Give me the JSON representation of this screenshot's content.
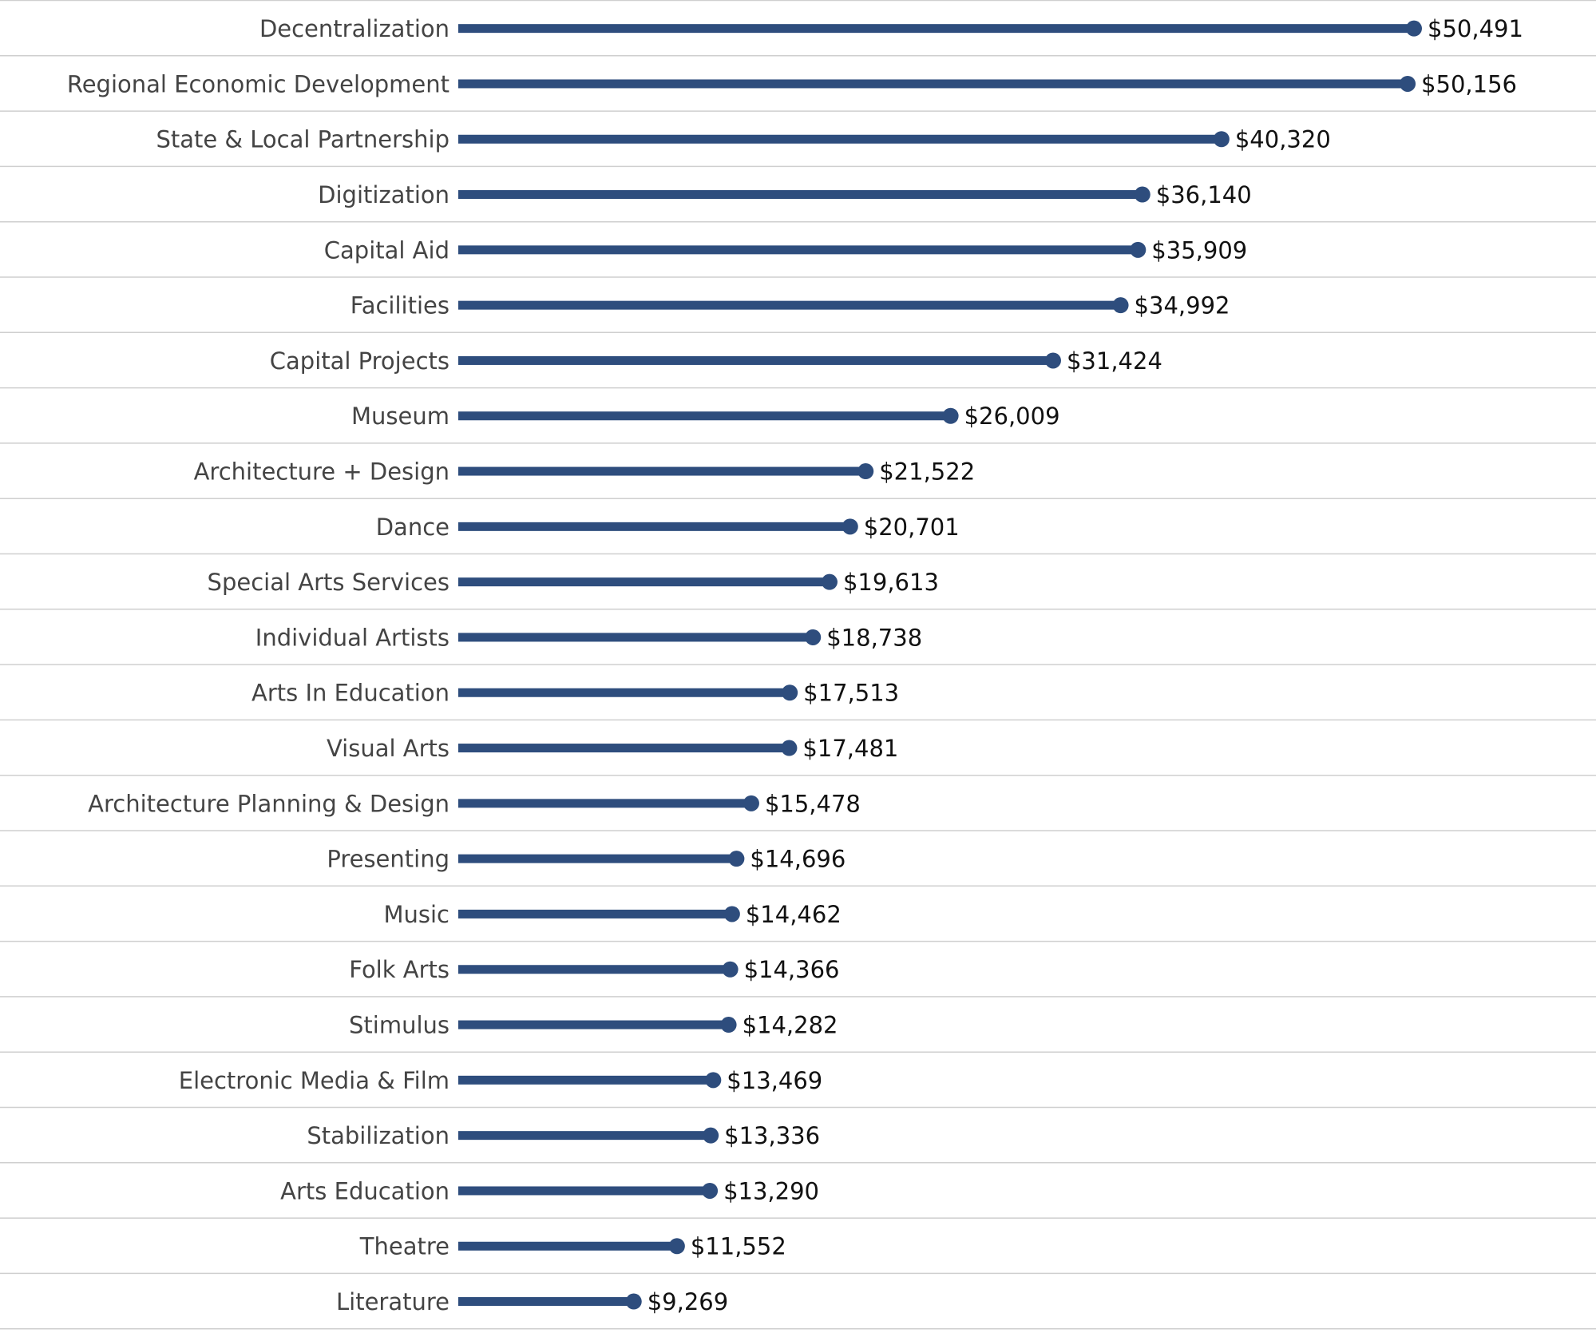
{
  "chart_data": {
    "type": "bar",
    "style": "lollipop",
    "orientation": "horizontal",
    "categories": [
      "Decentralization",
      "Regional Economic Development",
      "State & Local Partnership",
      "Digitization",
      "Capital Aid",
      "Facilities",
      "Capital Projects",
      "Museum",
      "Architecture + Design",
      "Dance",
      "Special Arts Services",
      "Individual Artists",
      "Arts In Education",
      "Visual Arts",
      "Architecture Planning & Design",
      "Presenting",
      "Music",
      "Folk Arts",
      "Stimulus",
      "Electronic Media & Film",
      "Stabilization",
      "Arts Education",
      "Theatre",
      "Literature"
    ],
    "values": [
      50491,
      50156,
      40320,
      36140,
      35909,
      34992,
      31424,
      26009,
      21522,
      20701,
      19613,
      18738,
      17513,
      17481,
      15478,
      14696,
      14462,
      14366,
      14282,
      13469,
      13336,
      13290,
      11552,
      9269
    ],
    "value_labels": [
      "$50,491",
      "$50,156",
      "$40,320",
      "$36,140",
      "$35,909",
      "$34,992",
      "$31,424",
      "$26,009",
      "$21,522",
      "$20,701",
      "$19,613",
      "$18,738",
      "$17,513",
      "$17,481",
      "$15,478",
      "$14,696",
      "$14,462",
      "$14,366",
      "$14,282",
      "$13,469",
      "$13,336",
      "$13,290",
      "$11,552",
      "$9,269"
    ],
    "xlim": [
      0,
      50491
    ],
    "grid": "horizontal row separators",
    "legend": "none",
    "colors": {
      "bar": "#2e4d7d",
      "label_text": "#444444",
      "value_text": "#111111",
      "row_separator": "#cfcfcf"
    }
  }
}
